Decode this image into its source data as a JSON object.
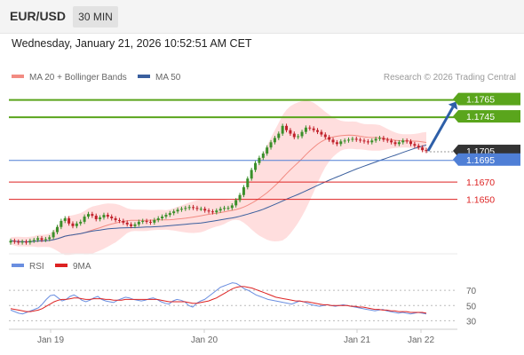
{
  "header": {
    "symbol": "EUR/USD",
    "timeframe": "30 MIN",
    "timestamp": "Wednesday, January 21, 2026 10:52:51 AM CET"
  },
  "legend": {
    "items": [
      {
        "label": "MA 20 + Bollinger Bands",
        "color": "#f28b82"
      },
      {
        "label": "MA 50",
        "color": "#3a5f9e"
      }
    ],
    "credit": "Research © 2026 Trading Central"
  },
  "rsi_legend": {
    "items": [
      {
        "label": "RSI",
        "color": "#6a8ee0"
      },
      {
        "label": "9MA",
        "color": "#dd2222"
      }
    ]
  },
  "colors": {
    "resistance": "#5aa51c",
    "last_price": "#333333",
    "pivot": "#4f7fd6",
    "support": "#dd2222",
    "up_candle": "#3b8f2a",
    "down_candle": "#c0202a",
    "band": "#ffd6d6",
    "arrow": "#2e5fa8"
  },
  "chart_data": [
    {
      "type": "candlestick",
      "title": "EUR/USD 30 MIN",
      "x_labels": [
        "Jan 19",
        "Jan 20",
        "Jan 21",
        "Jan 22"
      ],
      "ylim": [
        1.159,
        1.178
      ],
      "key_levels": [
        {
          "label": "1.1765",
          "value": 1.1765,
          "kind": "resistance"
        },
        {
          "label": "1.1745",
          "value": 1.1745,
          "kind": "resistance"
        },
        {
          "label": "1.1705",
          "value": 1.1705,
          "kind": "last"
        },
        {
          "label": "1.1695",
          "value": 1.1695,
          "kind": "pivot"
        },
        {
          "label": "1.1670",
          "value": 1.167,
          "kind": "support"
        },
        {
          "label": "1.1650",
          "value": 1.165,
          "kind": "support"
        }
      ],
      "forecast": {
        "from": 1.1705,
        "to": 1.1765,
        "direction": "up"
      },
      "series_close": [
        1.1602,
        1.1601,
        1.16,
        1.1601,
        1.16,
        1.1602,
        1.1603,
        1.1605,
        1.1603,
        1.1604,
        1.1606,
        1.1612,
        1.1618,
        1.1625,
        1.1628,
        1.1622,
        1.1619,
        1.1622,
        1.1624,
        1.163,
        1.1633,
        1.1631,
        1.1627,
        1.1629,
        1.1632,
        1.163,
        1.1628,
        1.1626,
        1.1625,
        1.1623,
        1.1621,
        1.1619,
        1.1621,
        1.1624,
        1.1625,
        1.1624,
        1.1623,
        1.1626,
        1.1628,
        1.163,
        1.1632,
        1.1634,
        1.1636,
        1.1638,
        1.1639,
        1.164,
        1.1641,
        1.164,
        1.1639,
        1.1639,
        1.1637,
        1.1636,
        1.1635,
        1.1637,
        1.1639,
        1.164,
        1.164,
        1.1643,
        1.1649,
        1.1655,
        1.1664,
        1.1674,
        1.1684,
        1.1692,
        1.1698,
        1.1703,
        1.171,
        1.1716,
        1.1721,
        1.1726,
        1.1735,
        1.173,
        1.1726,
        1.1722,
        1.1723,
        1.1728,
        1.1733,
        1.1732,
        1.173,
        1.1728,
        1.1725,
        1.1722,
        1.1719,
        1.1716,
        1.1714,
        1.1717,
        1.1718,
        1.1719,
        1.172,
        1.1719,
        1.1718,
        1.1717,
        1.1716,
        1.1718,
        1.172,
        1.1721,
        1.1719,
        1.1718,
        1.1716,
        1.1714,
        1.1716,
        1.1718,
        1.1717,
        1.1714,
        1.1712,
        1.171,
        1.1707,
        1.1706
      ],
      "ma50_endpoints": [
        1.1601,
        1.1713
      ]
    },
    {
      "type": "line",
      "title": "RSI",
      "x_labels": [
        "Jan 19",
        "Jan 20",
        "Jan 21",
        "Jan 22"
      ],
      "ylim": [
        20,
        90
      ],
      "y_ticks": [
        70,
        50,
        30
      ],
      "series": [
        {
          "name": "RSI",
          "values": [
            44,
            42,
            40,
            39,
            41,
            43,
            45,
            47,
            52,
            58,
            63,
            64,
            60,
            56,
            58,
            62,
            64,
            61,
            57,
            55,
            57,
            60,
            62,
            58,
            56,
            55,
            54,
            57,
            59,
            61,
            60,
            58,
            57,
            56,
            57,
            59,
            60,
            58,
            55,
            53,
            52,
            56,
            58,
            57,
            55,
            50,
            48,
            53,
            56,
            58,
            62,
            66,
            70,
            74,
            76,
            78,
            80,
            79,
            76,
            72,
            70,
            67,
            64,
            62,
            60,
            58,
            57,
            56,
            55,
            54,
            53,
            52,
            54,
            56,
            55,
            53,
            51,
            50,
            49,
            50,
            51,
            50,
            49,
            50,
            51,
            50,
            49,
            48,
            47,
            46,
            45,
            44,
            43,
            44,
            45,
            43,
            42,
            41,
            40,
            41,
            40,
            39,
            40,
            41,
            40,
            39
          ]
        },
        {
          "name": "9MA",
          "values": [
            46,
            45,
            44,
            43,
            42,
            42,
            43,
            44,
            46,
            49,
            52,
            55,
            57,
            58,
            58,
            59,
            60,
            60,
            59,
            58,
            58,
            59,
            59,
            59,
            58,
            58,
            57,
            57,
            57,
            58,
            58,
            58,
            58,
            58,
            58,
            58,
            58,
            58,
            57,
            56,
            55,
            55,
            55,
            55,
            55,
            54,
            53,
            53,
            54,
            55,
            56,
            58,
            60,
            63,
            66,
            69,
            72,
            74,
            75,
            75,
            74,
            73,
            71,
            69,
            67,
            65,
            63,
            61,
            60,
            59,
            58,
            57,
            56,
            56,
            55,
            55,
            54,
            53,
            52,
            51,
            51,
            50,
            50,
            50,
            50,
            50,
            49,
            49,
            48,
            48,
            47,
            46,
            45,
            45,
            44,
            44,
            43,
            43,
            42,
            42,
            42,
            41,
            41,
            41,
            41,
            40
          ]
        }
      ]
    }
  ]
}
